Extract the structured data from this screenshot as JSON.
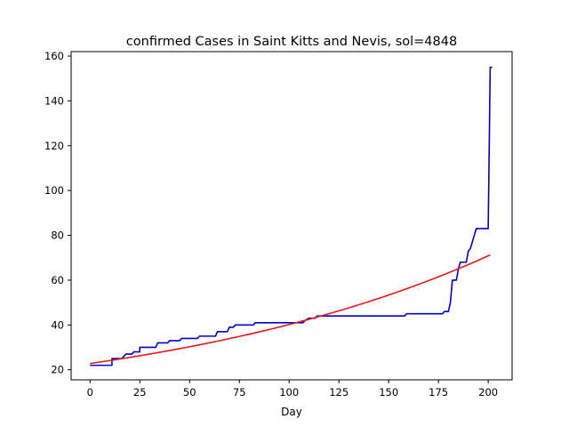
{
  "chart_data": {
    "type": "line",
    "title": "confirmed Cases in Saint Kitts and Nevis, sol=4848",
    "xlabel": "Day",
    "ylabel": "",
    "xlim": [
      -9.5,
      212
    ],
    "ylim": [
      15.5,
      162
    ],
    "xticks": [
      0,
      25,
      50,
      75,
      100,
      125,
      150,
      175,
      200
    ],
    "yticks": [
      20,
      40,
      60,
      80,
      100,
      120,
      140,
      160
    ],
    "grid": false,
    "legend": "none",
    "series": [
      {
        "color": "#0000cc",
        "points": [
          [
            0,
            22
          ],
          [
            11,
            22
          ],
          [
            11,
            25
          ],
          [
            16,
            25
          ],
          [
            17,
            26
          ],
          [
            18,
            27
          ],
          [
            21,
            27
          ],
          [
            22,
            28
          ],
          [
            25,
            28
          ],
          [
            25,
            30
          ],
          [
            33,
            30
          ],
          [
            34,
            32
          ],
          [
            39,
            32
          ],
          [
            40,
            33
          ],
          [
            45,
            33
          ],
          [
            46,
            34
          ],
          [
            54,
            34
          ],
          [
            55,
            35
          ],
          [
            63,
            35
          ],
          [
            64,
            37
          ],
          [
            69,
            37
          ],
          [
            70,
            39
          ],
          [
            72,
            39
          ],
          [
            73,
            40
          ],
          [
            82,
            40
          ],
          [
            83,
            41
          ],
          [
            107,
            41
          ],
          [
            108,
            42
          ],
          [
            110,
            43
          ],
          [
            113,
            43
          ],
          [
            114,
            44
          ],
          [
            158,
            44
          ],
          [
            159,
            45
          ],
          [
            177,
            45
          ],
          [
            178,
            46
          ],
          [
            180,
            46
          ],
          [
            181,
            50
          ],
          [
            182,
            60
          ],
          [
            184,
            60
          ],
          [
            185,
            65
          ],
          [
            186,
            68
          ],
          [
            189,
            68
          ],
          [
            190,
            73
          ],
          [
            191,
            74
          ],
          [
            192,
            77
          ],
          [
            193,
            80
          ],
          [
            194,
            83
          ],
          [
            200,
            83
          ],
          [
            201,
            155
          ],
          [
            202,
            155
          ]
        ]
      },
      {
        "color": "#e8191c",
        "model": "exponential",
        "a": 22.8,
        "b": 0.00567,
        "x_range": [
          0,
          201
        ]
      }
    ]
  }
}
